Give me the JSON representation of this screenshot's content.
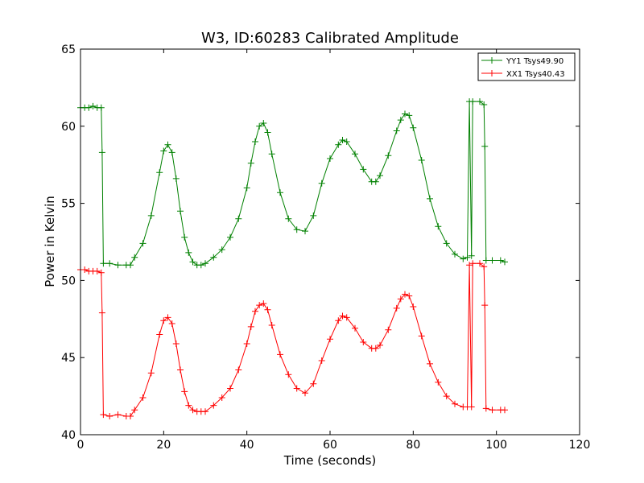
{
  "chart_data": {
    "type": "line",
    "title": "W3, ID:60283 Calibrated Amplitude",
    "xlabel": "Time (seconds)",
    "ylabel": "Power in Kelvin",
    "xlim": [
      0,
      120
    ],
    "ylim": [
      40,
      65
    ],
    "xticks": [
      "0",
      "20",
      "40",
      "60",
      "80",
      "100",
      "120"
    ],
    "yticks": [
      "40",
      "45",
      "50",
      "55",
      "60",
      "65"
    ],
    "grid": false,
    "legend_position": "top-right",
    "marker": "+",
    "series": [
      {
        "name": "YY1 Tsys49.90",
        "color": "#008000",
        "points": [
          [
            0,
            61.2
          ],
          [
            1,
            61.2
          ],
          [
            2,
            61.2
          ],
          [
            3,
            61.3
          ],
          [
            4,
            61.2
          ],
          [
            5,
            61.2
          ],
          [
            5.2,
            58.3
          ],
          [
            5.5,
            51.1
          ],
          [
            7,
            51.1
          ],
          [
            9,
            51.0
          ],
          [
            11,
            51.0
          ],
          [
            12,
            51.0
          ],
          [
            13,
            51.5
          ],
          [
            15,
            52.4
          ],
          [
            17,
            54.2
          ],
          [
            19,
            57.0
          ],
          [
            20,
            58.4
          ],
          [
            21,
            58.8
          ],
          [
            22,
            58.3
          ],
          [
            23,
            56.6
          ],
          [
            24,
            54.5
          ],
          [
            25,
            52.8
          ],
          [
            26,
            51.8
          ],
          [
            27,
            51.2
          ],
          [
            28,
            51.0
          ],
          [
            29,
            51.0
          ],
          [
            30,
            51.1
          ],
          [
            32,
            51.5
          ],
          [
            34,
            52.0
          ],
          [
            36,
            52.8
          ],
          [
            38,
            54.0
          ],
          [
            40,
            56.0
          ],
          [
            41,
            57.6
          ],
          [
            42,
            59.0
          ],
          [
            43,
            60.0
          ],
          [
            44,
            60.2
          ],
          [
            45,
            59.6
          ],
          [
            46,
            58.2
          ],
          [
            48,
            55.7
          ],
          [
            50,
            54.0
          ],
          [
            52,
            53.3
          ],
          [
            54,
            53.2
          ],
          [
            56,
            54.2
          ],
          [
            58,
            56.3
          ],
          [
            60,
            57.9
          ],
          [
            62,
            58.8
          ],
          [
            63,
            59.1
          ],
          [
            64,
            59.0
          ],
          [
            66,
            58.2
          ],
          [
            68,
            57.2
          ],
          [
            70,
            56.4
          ],
          [
            71,
            56.4
          ],
          [
            72,
            56.8
          ],
          [
            74,
            58.1
          ],
          [
            76,
            59.7
          ],
          [
            77,
            60.4
          ],
          [
            78,
            60.8
          ],
          [
            79,
            60.7
          ],
          [
            80,
            59.9
          ],
          [
            82,
            57.8
          ],
          [
            84,
            55.3
          ],
          [
            86,
            53.5
          ],
          [
            88,
            52.4
          ],
          [
            90,
            51.7
          ],
          [
            92,
            51.4
          ],
          [
            93,
            51.5
          ],
          [
            93.5,
            61.6
          ],
          [
            94,
            51.6
          ],
          [
            94.3,
            61.6
          ],
          [
            96,
            61.6
          ],
          [
            97,
            61.4
          ],
          [
            97.2,
            58.7
          ],
          [
            97.5,
            51.3
          ],
          [
            99,
            51.3
          ],
          [
            101,
            51.3
          ],
          [
            102,
            51.2
          ]
        ]
      },
      {
        "name": "XX1 Tsys40.43",
        "color": "#ff0000",
        "points": [
          [
            0,
            50.7
          ],
          [
            1,
            50.7
          ],
          [
            2,
            50.6
          ],
          [
            3,
            50.6
          ],
          [
            4,
            50.6
          ],
          [
            5,
            50.5
          ],
          [
            5.2,
            47.9
          ],
          [
            5.5,
            41.3
          ],
          [
            7,
            41.2
          ],
          [
            9,
            41.3
          ],
          [
            11,
            41.2
          ],
          [
            12,
            41.2
          ],
          [
            13,
            41.6
          ],
          [
            15,
            42.4
          ],
          [
            17,
            44.0
          ],
          [
            19,
            46.5
          ],
          [
            20,
            47.4
          ],
          [
            21,
            47.6
          ],
          [
            22,
            47.2
          ],
          [
            23,
            45.9
          ],
          [
            24,
            44.2
          ],
          [
            25,
            42.8
          ],
          [
            26,
            41.9
          ],
          [
            27,
            41.6
          ],
          [
            28,
            41.5
          ],
          [
            29,
            41.5
          ],
          [
            30,
            41.5
          ],
          [
            32,
            41.9
          ],
          [
            34,
            42.4
          ],
          [
            36,
            43.0
          ],
          [
            38,
            44.2
          ],
          [
            40,
            45.9
          ],
          [
            41,
            47.0
          ],
          [
            42,
            48.0
          ],
          [
            43,
            48.4
          ],
          [
            44,
            48.5
          ],
          [
            45,
            48.1
          ],
          [
            46,
            47.1
          ],
          [
            48,
            45.2
          ],
          [
            50,
            43.9
          ],
          [
            52,
            43.0
          ],
          [
            54,
            42.7
          ],
          [
            56,
            43.3
          ],
          [
            58,
            44.8
          ],
          [
            60,
            46.2
          ],
          [
            62,
            47.4
          ],
          [
            63,
            47.7
          ],
          [
            64,
            47.6
          ],
          [
            66,
            46.9
          ],
          [
            68,
            46.0
          ],
          [
            70,
            45.6
          ],
          [
            71,
            45.6
          ],
          [
            72,
            45.8
          ],
          [
            74,
            46.8
          ],
          [
            76,
            48.2
          ],
          [
            77,
            48.8
          ],
          [
            78,
            49.1
          ],
          [
            79,
            49.0
          ],
          [
            80,
            48.3
          ],
          [
            82,
            46.4
          ],
          [
            84,
            44.6
          ],
          [
            86,
            43.4
          ],
          [
            88,
            42.5
          ],
          [
            90,
            42.0
          ],
          [
            92,
            41.8
          ],
          [
            93,
            41.8
          ],
          [
            93.5,
            51.0
          ],
          [
            94,
            41.8
          ],
          [
            94.3,
            51.1
          ],
          [
            96,
            51.1
          ],
          [
            97,
            50.9
          ],
          [
            97.2,
            48.4
          ],
          [
            97.5,
            41.7
          ],
          [
            99,
            41.6
          ],
          [
            101,
            41.6
          ],
          [
            102,
            41.6
          ]
        ]
      }
    ]
  }
}
